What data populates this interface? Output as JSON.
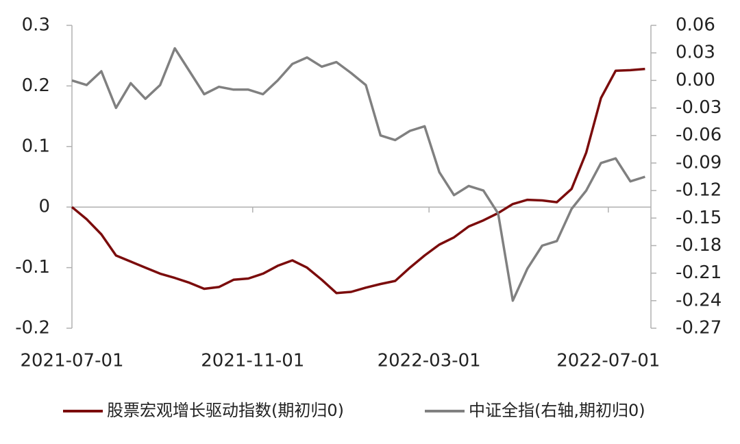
{
  "chart_data": {
    "type": "line",
    "x": [
      "2021-07-01",
      "2021-07-11",
      "2021-07-21",
      "2021-07-31",
      "2021-08-10",
      "2021-08-20",
      "2021-08-30",
      "2021-09-09",
      "2021-09-19",
      "2021-09-29",
      "2021-10-09",
      "2021-10-19",
      "2021-10-29",
      "2021-11-08",
      "2021-11-18",
      "2021-11-28",
      "2021-12-08",
      "2021-12-18",
      "2021-12-28",
      "2022-01-07",
      "2022-01-17",
      "2022-01-27",
      "2022-02-06",
      "2022-02-16",
      "2022-02-26",
      "2022-03-08",
      "2022-03-18",
      "2022-03-28",
      "2022-04-07",
      "2022-04-17",
      "2022-04-27",
      "2022-05-07",
      "2022-05-17",
      "2022-05-27",
      "2022-06-06",
      "2022-06-16",
      "2022-06-26",
      "2022-07-06",
      "2022-07-16",
      "2022-07-26"
    ],
    "series": [
      {
        "name": "股票宏观增长驱动指数(期初归0)",
        "color": "#7b0c0c",
        "axis": "y",
        "values": [
          0.0,
          -0.02,
          -0.045,
          -0.08,
          -0.09,
          -0.1,
          -0.11,
          -0.117,
          -0.125,
          -0.135,
          -0.132,
          -0.12,
          -0.118,
          -0.11,
          -0.097,
          -0.088,
          -0.1,
          -0.12,
          -0.142,
          -0.14,
          -0.133,
          -0.127,
          -0.122,
          -0.1,
          -0.08,
          -0.062,
          -0.05,
          -0.032,
          -0.022,
          -0.01,
          0.005,
          0.012,
          0.011,
          0.008,
          0.03,
          0.09,
          0.18,
          0.225,
          0.226,
          0.228
        ]
      },
      {
        "name": "中证全指(右轴,期初归0)",
        "color": "#808080",
        "axis": "y2",
        "values": [
          0.0,
          -0.005,
          0.01,
          -0.03,
          -0.003,
          -0.02,
          -0.005,
          0.035,
          0.01,
          -0.015,
          -0.007,
          -0.01,
          -0.01,
          -0.015,
          0.0,
          0.018,
          0.025,
          0.015,
          0.02,
          0.008,
          -0.005,
          -0.06,
          -0.065,
          -0.055,
          -0.05,
          -0.1,
          -0.125,
          -0.115,
          -0.12,
          -0.145,
          -0.24,
          -0.205,
          -0.18,
          -0.175,
          -0.14,
          -0.12,
          -0.09,
          -0.085,
          -0.11,
          -0.105
        ]
      }
    ],
    "xlim": [
      "2021-07-01",
      "2022-07-30"
    ],
    "xticks": [
      "2021-07-01",
      "2021-11-01",
      "2022-03-01",
      "2022-07-01"
    ],
    "ylim": [
      -0.2,
      0.3
    ],
    "yticks": [
      0.3,
      0.2,
      0.1,
      0,
      -0.1,
      -0.2
    ],
    "y2lim": [
      -0.27,
      0.06
    ],
    "y2ticks": [
      0.06,
      0.03,
      {
        "value": 0,
        "label": "0.00"
      },
      -0.03,
      -0.06,
      -0.09,
      -0.12,
      -0.15,
      -0.18,
      -0.21,
      -0.24,
      -0.27
    ],
    "legend": "bottom"
  }
}
